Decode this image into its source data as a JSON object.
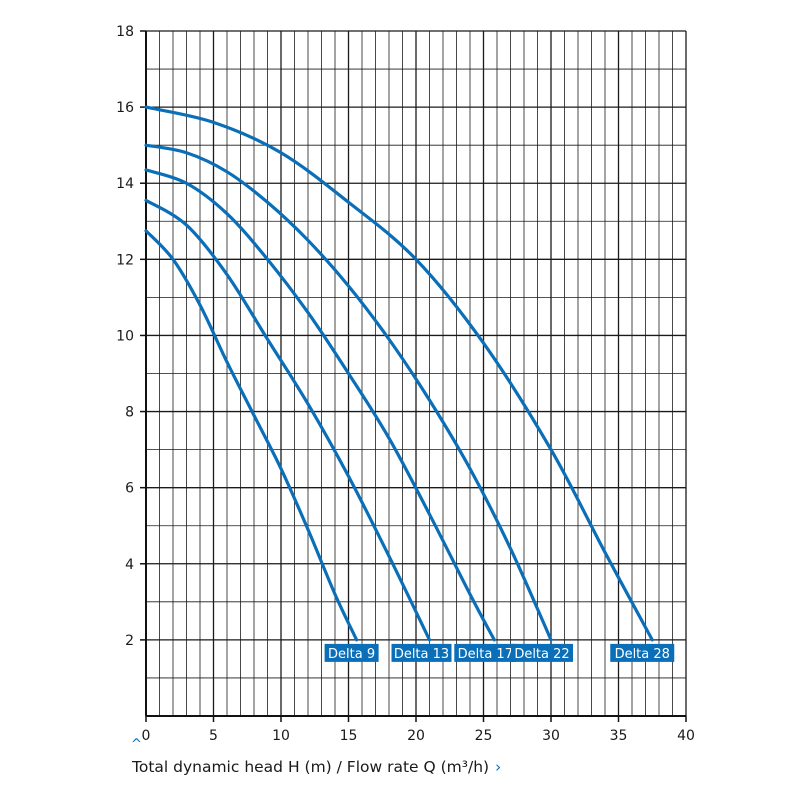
{
  "chart_data": {
    "type": "line",
    "xlabel": "Total dynamic head H (m) / Flow rate Q (m³/h)",
    "ylabel": "",
    "xlim": [
      0,
      40
    ],
    "ylim": [
      0,
      18
    ],
    "x_ticks": [
      0,
      5,
      10,
      15,
      20,
      25,
      30,
      35,
      40
    ],
    "y_ticks": [
      2,
      4,
      6,
      8,
      10,
      12,
      14,
      16,
      18
    ],
    "grid": true,
    "series": [
      {
        "name": "Delta 9",
        "x": [
          0,
          2,
          4,
          6,
          8,
          10,
          12,
          14,
          15.6
        ],
        "y": [
          12.75,
          12.0,
          10.8,
          9.3,
          7.9,
          6.5,
          4.9,
          3.2,
          2.0
        ]
      },
      {
        "name": "Delta 13",
        "x": [
          0,
          3,
          6,
          9,
          12,
          15,
          18,
          21
        ],
        "y": [
          13.55,
          12.9,
          11.6,
          9.9,
          8.2,
          6.3,
          4.2,
          2.0
        ]
      },
      {
        "name": "Delta 17",
        "x": [
          0,
          3,
          6,
          9,
          12,
          15,
          18,
          21,
          24,
          25.8
        ],
        "y": [
          14.35,
          14.0,
          13.2,
          12.0,
          10.6,
          9.0,
          7.3,
          5.3,
          3.2,
          2.0
        ]
      },
      {
        "name": "Delta 22",
        "x": [
          0,
          3,
          6,
          9,
          12,
          15,
          18,
          21,
          24,
          27,
          30
        ],
        "y": [
          15.0,
          14.8,
          14.3,
          13.5,
          12.5,
          11.3,
          9.9,
          8.3,
          6.5,
          4.4,
          2.0
        ]
      },
      {
        "name": "Delta 28",
        "x": [
          0,
          5,
          10,
          15,
          20,
          25,
          30,
          34,
          37.5
        ],
        "y": [
          16.0,
          15.6,
          14.8,
          13.5,
          12.0,
          9.8,
          7.0,
          4.3,
          2.0
        ]
      }
    ],
    "colors": {
      "line": "#0a6fb8",
      "label_bg": "#0a6fb8",
      "label_text": "#ffffff",
      "grid": "#1a1a1a"
    }
  }
}
